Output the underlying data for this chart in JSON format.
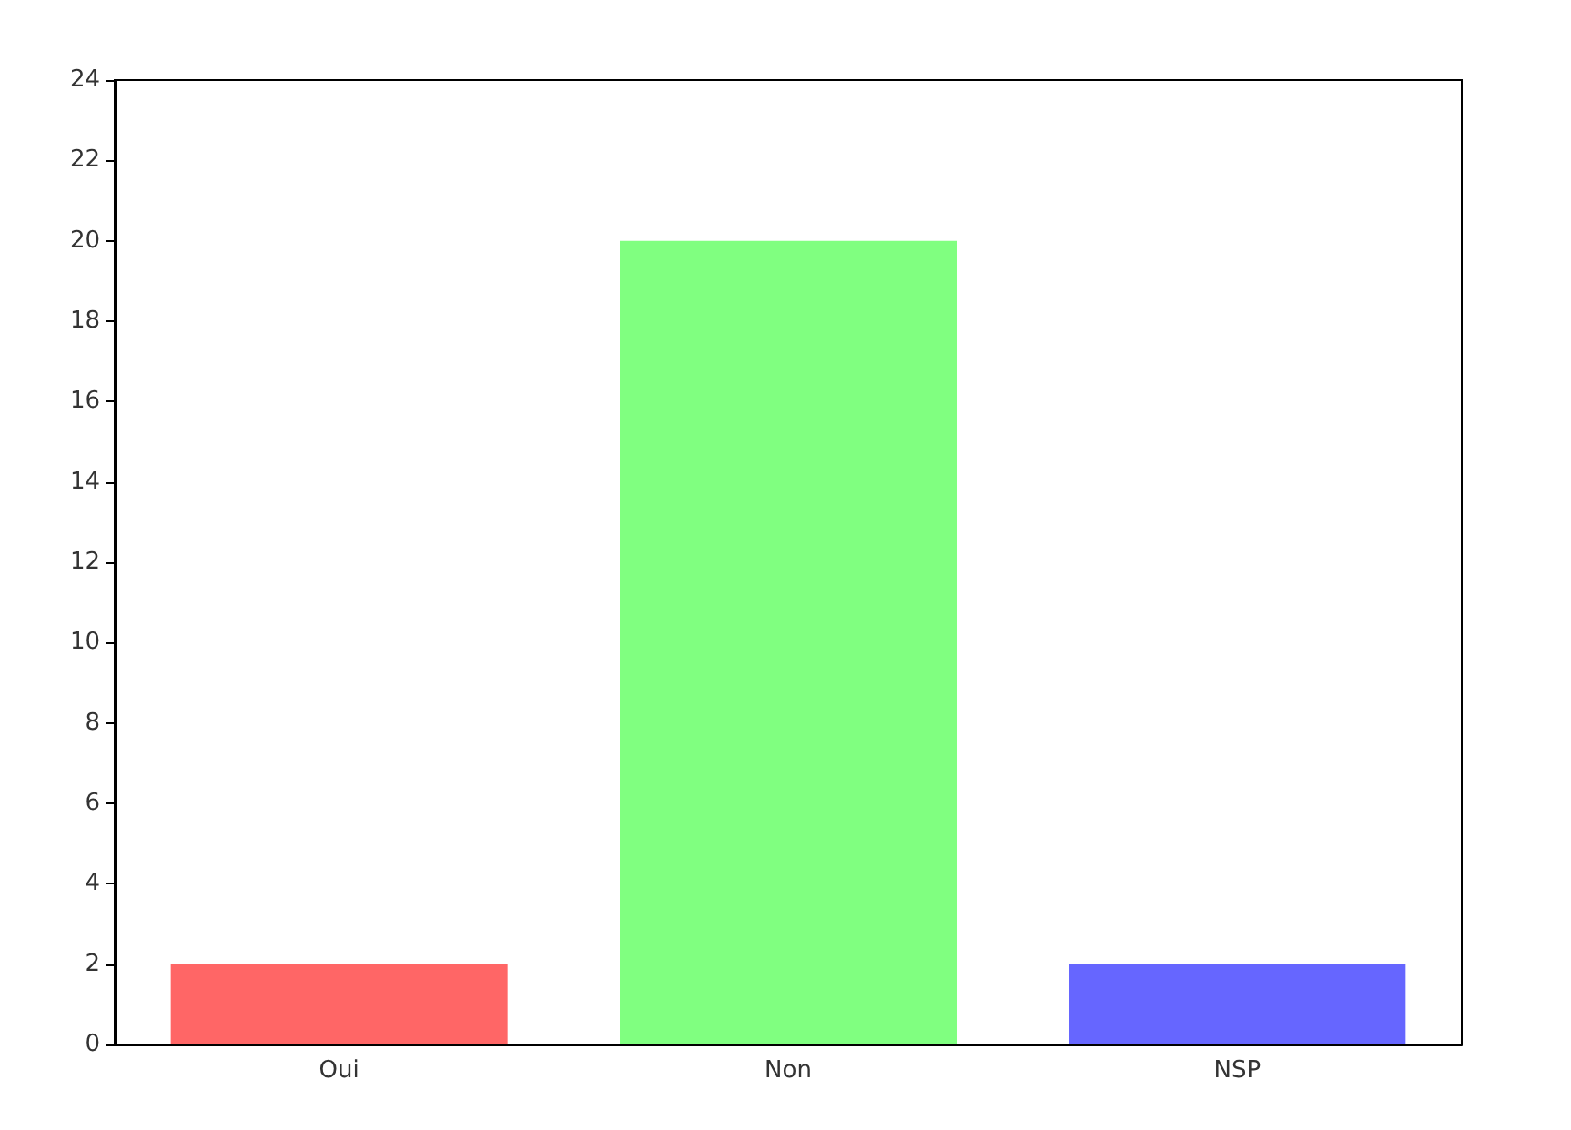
{
  "chart_data": {
    "type": "bar",
    "categories": [
      "Oui",
      "Non",
      "NSP"
    ],
    "values": [
      2,
      20,
      2
    ],
    "colors": [
      "#ff6666",
      "#80ff80",
      "#6666ff"
    ],
    "ylim": [
      0,
      24
    ],
    "yticks": [
      0,
      2,
      4,
      6,
      8,
      10,
      12,
      14,
      16,
      18,
      20,
      22,
      24
    ],
    "grid": false
  }
}
